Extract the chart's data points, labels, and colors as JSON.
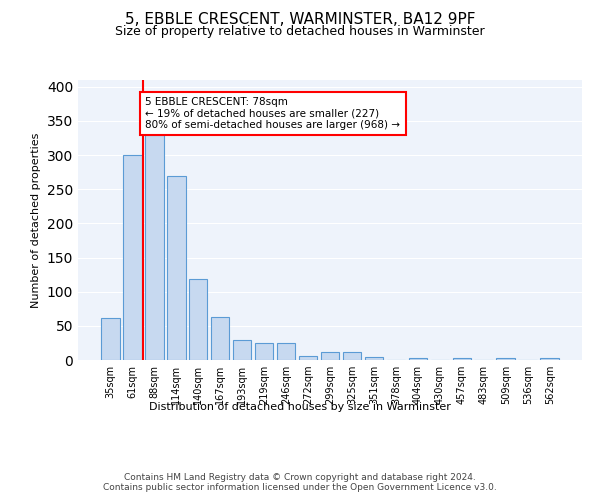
{
  "title1": "5, EBBLE CRESCENT, WARMINSTER, BA12 9PF",
  "title2": "Size of property relative to detached houses in Warminster",
  "xlabel": "Distribution of detached houses by size in Warminster",
  "ylabel": "Number of detached properties",
  "categories": [
    "35sqm",
    "61sqm",
    "88sqm",
    "114sqm",
    "140sqm",
    "167sqm",
    "193sqm",
    "219sqm",
    "246sqm",
    "272sqm",
    "299sqm",
    "325sqm",
    "351sqm",
    "378sqm",
    "404sqm",
    "430sqm",
    "457sqm",
    "483sqm",
    "509sqm",
    "536sqm",
    "562sqm"
  ],
  "values": [
    62,
    300,
    330,
    270,
    118,
    63,
    29,
    25,
    25,
    6,
    11,
    11,
    4,
    0,
    3,
    0,
    3,
    0,
    3,
    0,
    3
  ],
  "bar_color": "#c7d9f0",
  "bar_edgecolor": "#5b9bd5",
  "red_line_x": 1.5,
  "annotation_text": "5 EBBLE CRESCENT: 78sqm\n← 19% of detached houses are smaller (227)\n80% of semi-detached houses are larger (968) →",
  "footer": "Contains HM Land Registry data © Crown copyright and database right 2024.\nContains public sector information licensed under the Open Government Licence v3.0.",
  "bg_color": "#eef3fb",
  "ylim": [
    0,
    410
  ],
  "yticks": [
    0,
    50,
    100,
    150,
    200,
    250,
    300,
    350,
    400
  ]
}
